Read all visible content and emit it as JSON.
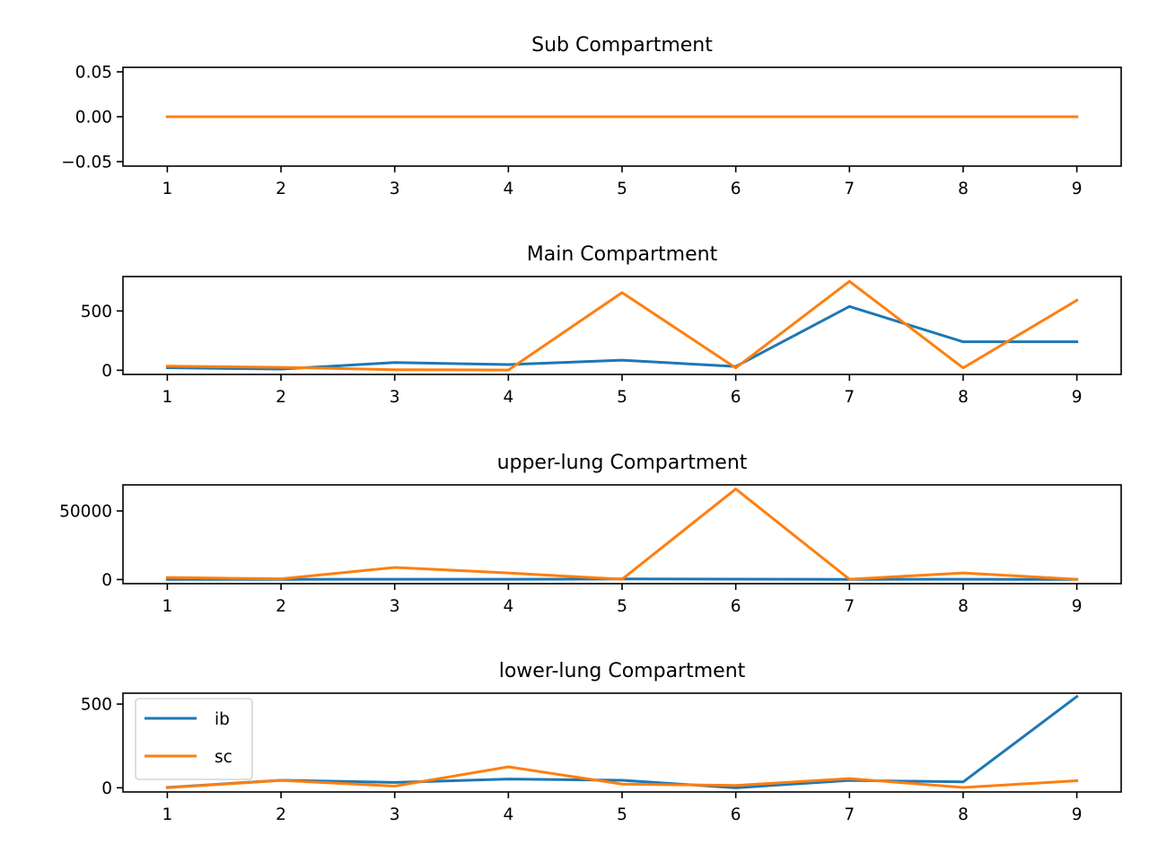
{
  "colors": {
    "ib": "#1f77b4",
    "sc": "#ff7f0e",
    "axis": "#000000",
    "legend_border": "#cccccc"
  },
  "chart_data": [
    {
      "type": "line",
      "title": "Sub Compartment",
      "xlabel": "",
      "ylabel": "",
      "x": [
        1,
        2,
        3,
        4,
        5,
        6,
        7,
        8,
        9
      ],
      "x_ticks": [
        "1",
        "2",
        "3",
        "4",
        "5",
        "6",
        "7",
        "8",
        "9"
      ],
      "xlim": [
        0.61,
        9.39
      ],
      "ylim": [
        -0.055,
        0.055
      ],
      "y_ticks": [
        -0.05,
        0.0,
        0.05
      ],
      "y_tick_labels": [
        "−0.05",
        "0.00",
        "0.05"
      ],
      "grid": false,
      "series": [
        {
          "key": "ib",
          "values": [
            0,
            0,
            0,
            0,
            0,
            0,
            0,
            0,
            0
          ]
        },
        {
          "key": "sc",
          "values": [
            0,
            0,
            0,
            0,
            0,
            0,
            0,
            0,
            0
          ]
        }
      ]
    },
    {
      "type": "line",
      "title": "Main Compartment",
      "xlabel": "",
      "ylabel": "",
      "x": [
        1,
        2,
        3,
        4,
        5,
        6,
        7,
        8,
        9
      ],
      "x_ticks": [
        "1",
        "2",
        "3",
        "4",
        "5",
        "6",
        "7",
        "8",
        "9"
      ],
      "xlim": [
        0.61,
        9.39
      ],
      "ylim": [
        -35,
        790
      ],
      "y_ticks": [
        0,
        500
      ],
      "y_tick_labels": [
        "0",
        "500"
      ],
      "grid": false,
      "series": [
        {
          "key": "ib",
          "values": [
            22,
            10,
            65,
            48,
            85,
            32,
            538,
            240,
            240
          ]
        },
        {
          "key": "sc",
          "values": [
            35,
            25,
            5,
            2,
            655,
            20,
            750,
            20,
            590
          ]
        }
      ]
    },
    {
      "type": "line",
      "title": "upper-lung Compartment",
      "xlabel": "",
      "ylabel": "",
      "x": [
        1,
        2,
        3,
        4,
        5,
        6,
        7,
        8,
        9
      ],
      "x_ticks": [
        "1",
        "2",
        "3",
        "4",
        "5",
        "6",
        "7",
        "8",
        "9"
      ],
      "xlim": [
        0.61,
        9.39
      ],
      "ylim": [
        -3000,
        69000
      ],
      "y_ticks": [
        0,
        50000
      ],
      "y_tick_labels": [
        "0",
        "50000"
      ],
      "grid": false,
      "series": [
        {
          "key": "ib",
          "values": [
            100,
            100,
            200,
            200,
            400,
            300,
            100,
            200,
            100
          ]
        },
        {
          "key": "sc",
          "values": [
            1500,
            500,
            8800,
            4800,
            200,
            66000,
            200,
            4800,
            200
          ]
        }
      ]
    },
    {
      "type": "line",
      "title": "lower-lung Compartment",
      "xlabel": "",
      "ylabel": "",
      "x": [
        1,
        2,
        3,
        4,
        5,
        6,
        7,
        8,
        9
      ],
      "x_ticks": [
        "1",
        "2",
        "3",
        "4",
        "5",
        "6",
        "7",
        "8",
        "9"
      ],
      "xlim": [
        0.61,
        9.39
      ],
      "ylim": [
        -25,
        565
      ],
      "y_ticks": [
        0,
        500
      ],
      "y_tick_labels": [
        "0",
        "500"
      ],
      "grid": false,
      "legend": {
        "placement": "upper-left",
        "entries": [
          "ib",
          "sc"
        ]
      },
      "series": [
        {
          "key": "ib",
          "name": "ib",
          "values": [
            2,
            45,
            32,
            52,
            45,
            0,
            44,
            35,
            545
          ]
        },
        {
          "key": "sc",
          "name": "sc",
          "values": [
            0,
            44,
            10,
            125,
            22,
            14,
            55,
            2,
            42
          ]
        }
      ]
    }
  ]
}
